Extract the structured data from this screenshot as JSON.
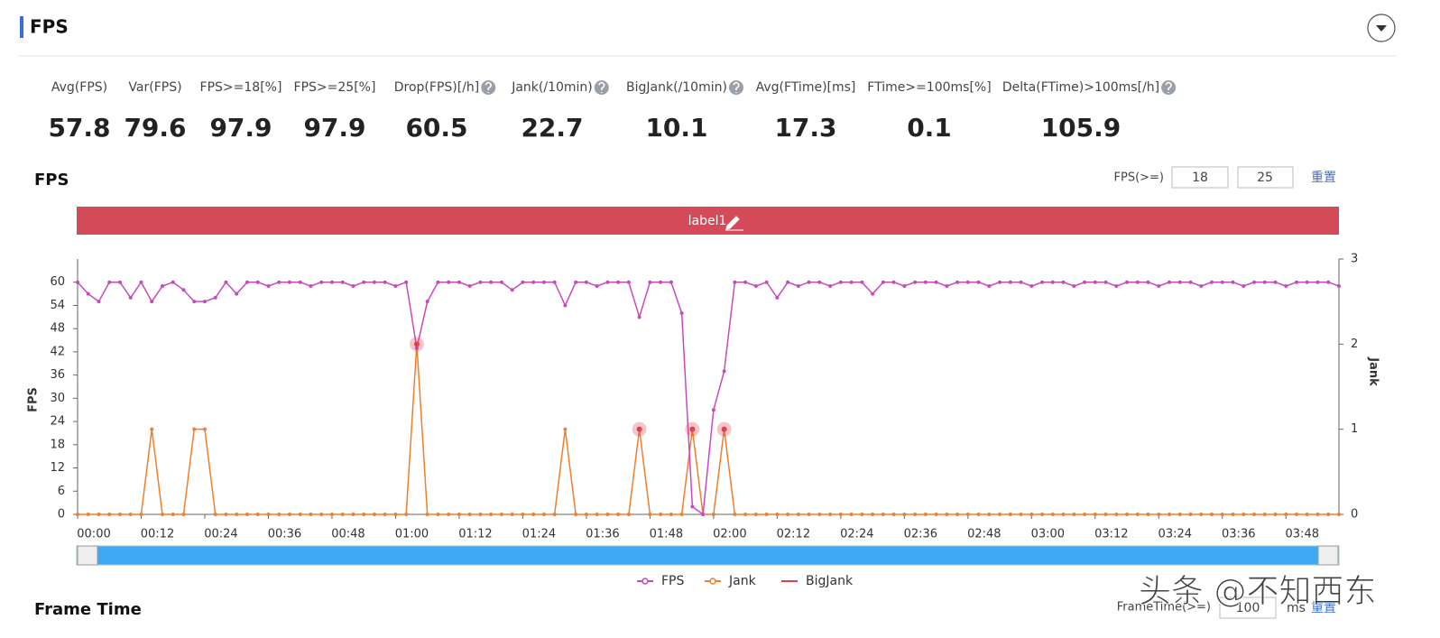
{
  "header": {
    "title": "FPS"
  },
  "stats": [
    {
      "label": "Avg(FPS)",
      "value": 57.8
    },
    {
      "label": "Var(FPS)",
      "value": 79.6
    },
    {
      "label": "FPS>=18[%]",
      "value": 97.9
    },
    {
      "label": "FPS>=25[%]",
      "value": 97.9
    },
    {
      "label": "Drop(FPS)[/h]",
      "value": 60.5
    },
    {
      "label": "Jank(/10min)",
      "value": 22.7
    },
    {
      "label": "BigJank(/10min)",
      "value": 10.1
    },
    {
      "label": "Avg(FTime)[ms]",
      "value": 17.3
    },
    {
      "label": "FTime>=100ms[%]",
      "value": 0.1
    },
    {
      "label": "Delta(FTime)>100ms[/h]",
      "value": 105.9
    }
  ],
  "fps_section": {
    "title": "FPS",
    "threshold_label": "FPS(>=)",
    "thresholds": [
      18,
      25
    ],
    "reset": "重置"
  },
  "label_bar": {
    "text": "label1"
  },
  "chart_data": {
    "type": "line",
    "ylabel": "FPS",
    "y2label": "Jank",
    "x": [
      0,
      2,
      4,
      6,
      8,
      10,
      12,
      14,
      16,
      18,
      20,
      22,
      24,
      26,
      28,
      30,
      32,
      34,
      36,
      38,
      40,
      42,
      44,
      46,
      48,
      50,
      52,
      54,
      56,
      58,
      60,
      62,
      64,
      66,
      68,
      70,
      72,
      74,
      76,
      78,
      80,
      82,
      84,
      86,
      88,
      90,
      92,
      94,
      96,
      98,
      100,
      102,
      104,
      106,
      108,
      110,
      112,
      114,
      116,
      118,
      120,
      122,
      124,
      126,
      128,
      130,
      132,
      134,
      136,
      138,
      140,
      142,
      144,
      146,
      148,
      150,
      152,
      154,
      156,
      158,
      160,
      162,
      164,
      166,
      168,
      170,
      172,
      174,
      176,
      178,
      180,
      182,
      184,
      186,
      188,
      190,
      192,
      194,
      196,
      198,
      200,
      202,
      204,
      206,
      208,
      210,
      212,
      214,
      216,
      218,
      220,
      222,
      224,
      226,
      228,
      230,
      232,
      234,
      236,
      238
    ],
    "series": [
      {
        "name": "FPS",
        "color": "#c54bbd",
        "values": [
          60,
          57,
          55,
          60,
          60,
          56,
          60,
          55,
          59,
          60,
          58,
          55,
          55,
          56,
          60,
          57,
          60,
          60,
          59,
          60,
          60,
          60,
          59,
          60,
          60,
          60,
          59,
          60,
          60,
          60,
          59,
          60,
          43,
          55,
          60,
          60,
          60,
          59,
          60,
          60,
          60,
          58,
          60,
          60,
          60,
          60,
          54,
          60,
          60,
          59,
          60,
          60,
          60,
          51,
          60,
          60,
          60,
          52,
          2,
          0,
          27,
          37,
          60,
          60,
          59,
          60,
          56,
          60,
          59,
          60,
          60,
          59,
          60,
          60,
          60,
          57,
          60,
          60,
          59,
          60,
          60,
          60,
          59,
          60,
          60,
          60,
          59,
          60,
          60,
          60,
          59,
          60,
          60,
          60,
          59,
          60,
          60,
          60,
          59,
          60,
          60,
          60,
          59,
          60,
          60,
          60,
          59,
          60,
          60,
          60,
          59,
          60,
          60,
          60,
          59,
          60,
          60,
          60,
          60,
          59
        ]
      },
      {
        "name": "Jank",
        "color": "#f07f2d",
        "axis": "y2",
        "values": [
          0,
          0,
          0,
          0,
          0,
          0,
          0,
          1,
          0,
          0,
          0,
          1,
          1,
          0,
          0,
          0,
          0,
          0,
          0,
          0,
          0,
          0,
          0,
          0,
          0,
          0,
          0,
          0,
          0,
          0,
          0,
          0,
          2,
          0,
          0,
          0,
          0,
          0,
          0,
          0,
          0,
          0,
          0,
          0,
          0,
          0,
          1,
          0,
          0,
          0,
          0,
          0,
          0,
          1,
          0,
          0,
          0,
          0,
          1,
          0,
          0,
          1,
          0,
          0,
          0,
          0,
          0,
          0,
          0,
          0,
          0,
          0,
          0,
          0,
          0,
          0,
          0,
          0,
          0,
          0,
          0,
          0,
          0,
          0,
          0,
          0,
          0,
          0,
          0,
          0,
          0,
          0,
          0,
          0,
          0,
          0,
          0,
          0,
          0,
          0,
          0,
          0,
          0,
          0,
          0,
          0,
          0,
          0,
          0,
          0,
          0,
          0,
          0,
          0,
          0,
          0,
          0,
          0,
          0,
          0
        ]
      },
      {
        "name": "BigJank",
        "color": "#e0404c",
        "axis": "y2",
        "values": [
          null,
          null,
          null,
          null,
          null,
          null,
          null,
          null,
          null,
          null,
          null,
          null,
          null,
          null,
          null,
          null,
          null,
          null,
          null,
          null,
          null,
          null,
          null,
          null,
          null,
          null,
          null,
          null,
          null,
          null,
          null,
          null,
          2,
          null,
          null,
          null,
          null,
          null,
          null,
          null,
          null,
          null,
          null,
          null,
          null,
          null,
          null,
          null,
          null,
          null,
          null,
          null,
          null,
          1,
          null,
          null,
          null,
          null,
          1,
          null,
          null,
          1,
          null,
          null,
          null,
          null,
          null,
          null,
          null,
          null,
          null,
          null,
          null,
          null,
          null,
          null,
          null,
          null,
          null,
          null,
          null,
          null,
          null,
          null,
          null,
          null,
          null,
          null,
          null,
          null,
          null,
          null,
          null,
          null,
          null,
          null,
          null,
          null,
          null,
          null,
          null,
          null,
          null,
          null,
          null,
          null,
          null,
          null,
          null,
          null,
          null,
          null,
          null,
          null,
          null,
          null,
          null,
          null,
          null,
          null
        ]
      }
    ],
    "xlim": [
      0,
      238
    ],
    "xticks": [
      {
        "value": 0,
        "label": "00:00"
      },
      {
        "value": 12,
        "label": "00:12"
      },
      {
        "value": 24,
        "label": "00:24"
      },
      {
        "value": 36,
        "label": "00:36"
      },
      {
        "value": 48,
        "label": "00:48"
      },
      {
        "value": 60,
        "label": "01:00"
      },
      {
        "value": 72,
        "label": "01:12"
      },
      {
        "value": 84,
        "label": "01:24"
      },
      {
        "value": 96,
        "label": "01:36"
      },
      {
        "value": 108,
        "label": "01:48"
      },
      {
        "value": 120,
        "label": "02:00"
      },
      {
        "value": 132,
        "label": "02:12"
      },
      {
        "value": 144,
        "label": "02:24"
      },
      {
        "value": 156,
        "label": "02:36"
      },
      {
        "value": 168,
        "label": "02:48"
      },
      {
        "value": 180,
        "label": "03:00"
      },
      {
        "value": 192,
        "label": "03:12"
      },
      {
        "value": 204,
        "label": "03:24"
      },
      {
        "value": 216,
        "label": "03:36"
      },
      {
        "value": 228,
        "label": "03:48"
      }
    ],
    "ylim": [
      0,
      66
    ],
    "yticks": [
      0,
      6,
      12,
      18,
      24,
      30,
      36,
      42,
      48,
      54,
      60
    ],
    "y2lim": [
      0,
      3
    ],
    "y2ticks": [
      0,
      1,
      2,
      3
    ],
    "legend": "bottom"
  },
  "frame_time_section": {
    "title": "Frame Time",
    "threshold_label": "FrameTime(>=)",
    "threshold": 100,
    "unit": "ms",
    "reset": "重置"
  },
  "watermark": "头条 @不知西东"
}
